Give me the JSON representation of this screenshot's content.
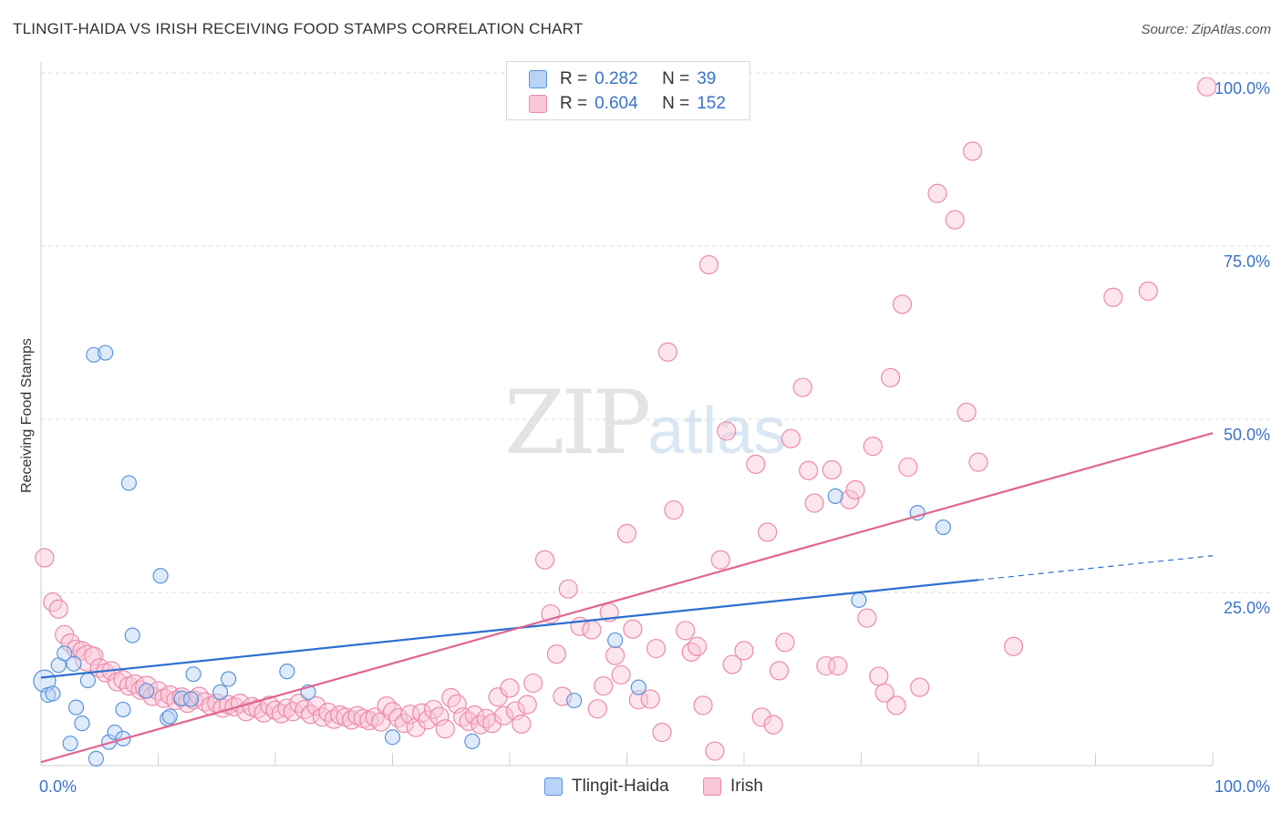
{
  "header": {
    "title": "TLINGIT-HAIDA VS IRISH RECEIVING FOOD STAMPS CORRELATION CHART",
    "source": "Source: ZipAtlas.com"
  },
  "watermark": {
    "zip": "ZIP",
    "atlas": "atlas"
  },
  "legend": {
    "r_label": "R =",
    "n_label": "N =",
    "rows": [
      {
        "r": "0.282",
        "n": "39",
        "fill": "#b8d3f5",
        "stroke": "#5b93da"
      },
      {
        "r": "0.604",
        "n": "152",
        "fill": "#f9c6d6",
        "stroke": "#ec8aac"
      }
    ]
  },
  "bottom_legend": [
    {
      "label": "Tlingit-Haida",
      "fill": "#b8d3f5",
      "stroke": "#5b93da"
    },
    {
      "label": "Irish",
      "fill": "#f9c6d6",
      "stroke": "#ec8aac"
    }
  ],
  "chart_data": {
    "type": "scatter",
    "title": "TLINGIT-HAIDA VS IRISH RECEIVING FOOD STAMPS CORRELATION CHART",
    "xlabel": "",
    "ylabel": "Receiving Food Stamps",
    "xlim": [
      0,
      100
    ],
    "ylim": [
      0,
      100
    ],
    "x_tick_labels": [
      "0.0%",
      "100.0%"
    ],
    "y_tick_labels": [
      {
        "value": 25,
        "label": "25.0%"
      },
      {
        "value": 50,
        "label": "50.0%"
      },
      {
        "value": 75,
        "label": "75.0%"
      },
      {
        "value": 100,
        "label": "100.0%"
      }
    ],
    "grid": true,
    "colors": {
      "tlingit": "#5b93da",
      "irish": "#ec8aac",
      "tlingit_line": "#2b6fcf",
      "irish_line": "#e0668f",
      "tick_label": "#3b72c9"
    },
    "series": [
      {
        "name": "Tlingit-Haida",
        "trend": {
          "x0": 0,
          "y0": 12.7,
          "x1": 80,
          "y1": 26.8,
          "dashed_to_x": 100,
          "dashed_to_y": 30.3
        },
        "points": [
          [
            0.3,
            12.2,
            12
          ],
          [
            0.6,
            10.2,
            8
          ],
          [
            1.0,
            10.4,
            8
          ],
          [
            1.5,
            14.5,
            8
          ],
          [
            2.0,
            16.2,
            8
          ],
          [
            2.5,
            3.2,
            8
          ],
          [
            2.8,
            14.7,
            8
          ],
          [
            3.0,
            8.4,
            8
          ],
          [
            3.5,
            6.1,
            8
          ],
          [
            4.0,
            12.3,
            8
          ],
          [
            4.5,
            59.3,
            8
          ],
          [
            4.7,
            1.0,
            8
          ],
          [
            5.5,
            59.6,
            8
          ],
          [
            5.8,
            3.4,
            8
          ],
          [
            6.3,
            4.8,
            8
          ],
          [
            7.0,
            3.9,
            8
          ],
          [
            7.0,
            8.1,
            8
          ],
          [
            7.5,
            40.8,
            8
          ],
          [
            7.8,
            18.8,
            8
          ],
          [
            9.0,
            10.8,
            8
          ],
          [
            10.2,
            27.4,
            8
          ],
          [
            10.8,
            6.8,
            8
          ],
          [
            11.0,
            7.1,
            8
          ],
          [
            12.0,
            9.7,
            8
          ],
          [
            12.8,
            9.6,
            8
          ],
          [
            13.0,
            13.2,
            8
          ],
          [
            15.3,
            10.6,
            8
          ],
          [
            16.0,
            12.5,
            8
          ],
          [
            21.0,
            13.6,
            8
          ],
          [
            22.8,
            10.6,
            8
          ],
          [
            30.0,
            4.1,
            8
          ],
          [
            36.8,
            3.5,
            8
          ],
          [
            45.5,
            9.4,
            8
          ],
          [
            49.0,
            18.1,
            8
          ],
          [
            51.0,
            11.3,
            8
          ],
          [
            67.8,
            38.9,
            8
          ],
          [
            69.8,
            23.9,
            8
          ],
          [
            74.8,
            36.5,
            8
          ],
          [
            77.0,
            34.4,
            8
          ]
        ]
      },
      {
        "name": "Irish",
        "trend": {
          "x0": 0,
          "y0": 0.5,
          "x1": 100,
          "y1": 48.0
        },
        "points": [
          [
            0.3,
            30.0,
            10
          ],
          [
            1.0,
            23.6,
            10
          ],
          [
            1.5,
            22.6,
            10
          ],
          [
            2.0,
            18.9,
            10
          ],
          [
            2.5,
            17.7,
            10
          ],
          [
            3.0,
            16.8,
            10
          ],
          [
            3.5,
            16.6,
            10
          ],
          [
            4.0,
            15.5,
            14
          ],
          [
            4.5,
            15.8,
            10
          ],
          [
            5.0,
            14.1,
            10
          ],
          [
            5.5,
            13.4,
            10
          ],
          [
            6.0,
            13.7,
            10
          ],
          [
            6.5,
            12.1,
            10
          ],
          [
            7.0,
            12.4,
            10
          ],
          [
            7.5,
            11.5,
            10
          ],
          [
            8.0,
            11.8,
            10
          ],
          [
            8.5,
            10.9,
            10
          ],
          [
            9.0,
            11.3,
            12
          ],
          [
            9.5,
            10.0,
            10
          ],
          [
            10.0,
            10.8,
            10
          ],
          [
            10.5,
            9.7,
            10
          ],
          [
            11.0,
            10.2,
            10
          ],
          [
            11.5,
            9.4,
            10
          ],
          [
            12.0,
            9.9,
            10
          ],
          [
            12.5,
            9.0,
            10
          ],
          [
            13.0,
            9.5,
            10
          ],
          [
            13.5,
            10.0,
            10
          ],
          [
            14.0,
            9.2,
            10
          ],
          [
            14.5,
            8.6,
            10
          ],
          [
            15.0,
            9.0,
            10
          ],
          [
            15.5,
            8.3,
            10
          ],
          [
            16.0,
            8.8,
            10
          ],
          [
            16.5,
            8.5,
            10
          ],
          [
            17.0,
            9.0,
            10
          ],
          [
            17.5,
            7.8,
            10
          ],
          [
            18.0,
            8.5,
            10
          ],
          [
            18.5,
            8.2,
            10
          ],
          [
            19.0,
            7.6,
            10
          ],
          [
            19.5,
            8.7,
            10
          ],
          [
            20.0,
            8.0,
            10
          ],
          [
            20.5,
            7.5,
            10
          ],
          [
            21.0,
            8.3,
            10
          ],
          [
            21.5,
            7.8,
            10
          ],
          [
            22.0,
            9.0,
            10
          ],
          [
            22.5,
            8.1,
            10
          ],
          [
            23.0,
            7.4,
            10
          ],
          [
            23.5,
            8.6,
            10
          ],
          [
            24.0,
            7.0,
            10
          ],
          [
            24.5,
            7.7,
            10
          ],
          [
            25.0,
            6.7,
            10
          ],
          [
            25.5,
            7.3,
            10
          ],
          [
            26.0,
            7.0,
            10
          ],
          [
            26.5,
            6.6,
            10
          ],
          [
            27.0,
            7.2,
            10
          ],
          [
            27.5,
            6.8,
            10
          ],
          [
            28.0,
            6.5,
            10
          ],
          [
            28.5,
            7.0,
            10
          ],
          [
            29.0,
            6.3,
            10
          ],
          [
            29.5,
            8.6,
            10
          ],
          [
            30.0,
            7.8,
            10
          ],
          [
            30.5,
            6.9,
            10
          ],
          [
            31.0,
            6.1,
            10
          ],
          [
            31.5,
            7.4,
            10
          ],
          [
            32.0,
            5.5,
            10
          ],
          [
            32.5,
            7.6,
            10
          ],
          [
            33.0,
            6.6,
            10
          ],
          [
            33.5,
            8.1,
            10
          ],
          [
            34.0,
            7.1,
            10
          ],
          [
            34.5,
            5.3,
            10
          ],
          [
            35.0,
            9.8,
            10
          ],
          [
            35.5,
            8.9,
            10
          ],
          [
            36.0,
            7.0,
            10
          ],
          [
            36.5,
            6.4,
            10
          ],
          [
            37.0,
            7.3,
            10
          ],
          [
            37.5,
            5.9,
            10
          ],
          [
            38.0,
            6.8,
            10
          ],
          [
            38.5,
            6.1,
            10
          ],
          [
            39.0,
            9.9,
            10
          ],
          [
            39.5,
            7.2,
            10
          ],
          [
            40.0,
            11.2,
            10
          ],
          [
            40.5,
            7.9,
            10
          ],
          [
            41.0,
            6.0,
            10
          ],
          [
            41.5,
            8.8,
            10
          ],
          [
            42.0,
            11.9,
            10
          ],
          [
            43.0,
            29.7,
            10
          ],
          [
            43.5,
            21.9,
            10
          ],
          [
            44.0,
            16.1,
            10
          ],
          [
            44.5,
            10.0,
            10
          ],
          [
            45.0,
            25.5,
            10
          ],
          [
            46.0,
            20.1,
            10
          ],
          [
            47.0,
            19.6,
            10
          ],
          [
            47.5,
            8.2,
            10
          ],
          [
            48.0,
            11.5,
            10
          ],
          [
            48.5,
            22.1,
            10
          ],
          [
            49.0,
            15.9,
            10
          ],
          [
            49.5,
            13.1,
            10
          ],
          [
            50.0,
            33.5,
            10
          ],
          [
            50.5,
            19.7,
            10
          ],
          [
            51.0,
            9.5,
            10
          ],
          [
            52.0,
            9.6,
            10
          ],
          [
            52.5,
            16.9,
            10
          ],
          [
            53.0,
            4.8,
            10
          ],
          [
            53.5,
            59.7,
            10
          ],
          [
            54.0,
            36.9,
            10
          ],
          [
            55.0,
            19.5,
            10
          ],
          [
            55.5,
            16.4,
            10
          ],
          [
            56.0,
            17.2,
            10
          ],
          [
            56.5,
            8.7,
            10
          ],
          [
            57.0,
            72.3,
            10
          ],
          [
            57.5,
            2.1,
            10
          ],
          [
            58.0,
            29.7,
            10
          ],
          [
            58.5,
            48.3,
            10
          ],
          [
            59.0,
            14.6,
            10
          ],
          [
            60.0,
            16.6,
            10
          ],
          [
            61.0,
            43.5,
            10
          ],
          [
            61.5,
            7.0,
            10
          ],
          [
            62.0,
            33.7,
            10
          ],
          [
            62.5,
            5.9,
            10
          ],
          [
            63.0,
            13.7,
            10
          ],
          [
            63.5,
            17.8,
            10
          ],
          [
            64.0,
            47.2,
            10
          ],
          [
            65.0,
            54.6,
            10
          ],
          [
            65.5,
            42.6,
            10
          ],
          [
            66.0,
            37.9,
            10
          ],
          [
            67.0,
            14.4,
            10
          ],
          [
            67.5,
            42.7,
            10
          ],
          [
            68.0,
            14.4,
            10
          ],
          [
            69.0,
            38.4,
            10
          ],
          [
            69.5,
            39.8,
            10
          ],
          [
            70.5,
            21.3,
            10
          ],
          [
            71.0,
            46.1,
            10
          ],
          [
            71.5,
            12.9,
            10
          ],
          [
            72.0,
            10.5,
            10
          ],
          [
            72.5,
            56.0,
            10
          ],
          [
            73.0,
            8.7,
            10
          ],
          [
            73.5,
            66.6,
            10
          ],
          [
            74.0,
            43.1,
            10
          ],
          [
            75.0,
            11.3,
            10
          ],
          [
            76.5,
            82.6,
            10
          ],
          [
            78.0,
            78.8,
            10
          ],
          [
            79.0,
            51.0,
            10
          ],
          [
            79.5,
            88.7,
            10
          ],
          [
            80.0,
            43.8,
            10
          ],
          [
            83.0,
            17.2,
            10
          ],
          [
            91.5,
            67.6,
            10
          ],
          [
            94.5,
            68.5,
            10
          ],
          [
            99.5,
            98.0,
            10
          ]
        ]
      }
    ]
  }
}
